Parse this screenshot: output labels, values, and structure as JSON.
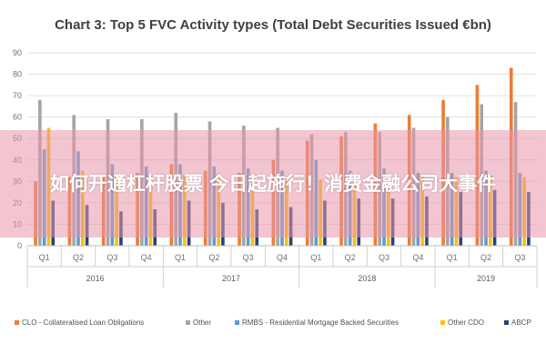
{
  "chart_data": {
    "type": "bar",
    "title": "Chart 3: Top 5 FVC Activity types (Total Debt Securities Issued €bn)",
    "categories": [
      "Q1",
      "Q2",
      "Q3",
      "Q4",
      "Q1",
      "Q2",
      "Q3",
      "Q4",
      "Q1",
      "Q2",
      "Q3",
      "Q4",
      "Q1",
      "Q2",
      "Q3"
    ],
    "groups": [
      {
        "label": "2016",
        "span": 4
      },
      {
        "label": "2017",
        "span": 4
      },
      {
        "label": "2018",
        "span": 4
      },
      {
        "label": "2019",
        "span": 3
      }
    ],
    "ylim": [
      0,
      90
    ],
    "yticks": [
      0,
      10,
      20,
      30,
      40,
      50,
      60,
      70,
      80,
      90
    ],
    "grid": true,
    "legend_position": "bottom",
    "series": [
      {
        "name": "CLO - Collateralised Loan Obligations",
        "color": "#ED7D31",
        "values": [
          30,
          32,
          33,
          34,
          38,
          35,
          34,
          40,
          49,
          51,
          57,
          61,
          68,
          75,
          83
        ]
      },
      {
        "name": "Other",
        "color": "#A5A5A5",
        "values": [
          68,
          61,
          59,
          59,
          62,
          58,
          56,
          55,
          52,
          53,
          53,
          55,
          60,
          66,
          67
        ]
      },
      {
        "name": "RMBS - Residential Mortgage Backed Securities",
        "color": "#5B9BD5",
        "values": [
          45,
          44,
          38,
          37,
          38,
          37,
          36,
          35,
          40,
          35,
          36,
          34,
          34,
          35,
          34
        ]
      },
      {
        "name": "Other CDO",
        "color": "#FFC000",
        "values": [
          55,
          35,
          33,
          33,
          33,
          34,
          32,
          30,
          31,
          32,
          30,
          33,
          32,
          33,
          32
        ]
      },
      {
        "name": "ABCP",
        "color": "#264478",
        "values": [
          21,
          19,
          16,
          17,
          21,
          20,
          17,
          18,
          21,
          22,
          22,
          23,
          25,
          26,
          25
        ]
      }
    ]
  },
  "overlay": {
    "text": "如何开通杠杆股票 今日起施行！消费金融公司大事件"
  }
}
